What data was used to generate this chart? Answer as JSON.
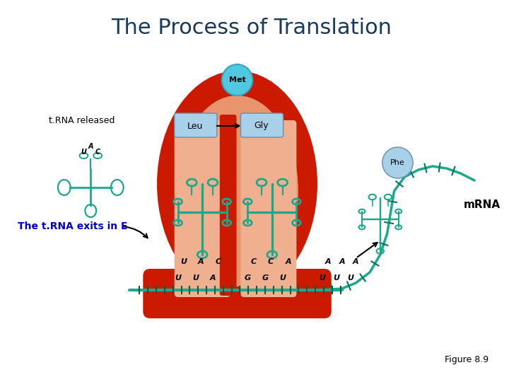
{
  "title": "The Process of Translation",
  "title_color": "#1a3a5c",
  "title_fontsize": 22,
  "bg_color": "#ffffff",
  "ribosome_outer_color": "#cc1a00",
  "ribosome_inner_color": "#e8956d",
  "ribosome_inner2_color": "#f0b090",
  "trna_color": "#1aaa8a",
  "mrna_color": "#1aaa8a",
  "leu_box_color": "#a8d0e8",
  "gly_box_color": "#a8d0e8",
  "met_circle_color": "#50c8e0",
  "phe_circle_color": "#a8d0e8",
  "subtitle_text": "The t.RNA exits in E",
  "subtitle_color": "#0000cc",
  "subtitle_fontsize": 10,
  "figure_text": "Figure 8.9",
  "figure_text_fontsize": 9,
  "figure_text_color": "#000000",
  "label_leu": "Leu",
  "label_gly": "Gly",
  "label_met": "Met",
  "label_phe": "Phe",
  "label_mrna": "mRNA",
  "label_trna_released": "t.RNA released",
  "codon_top1": [
    "U",
    "A",
    "C"
  ],
  "codon_bot1": [
    "U",
    "U",
    "A"
  ],
  "codon_top2": [
    "C",
    "C",
    "A"
  ],
  "codon_bot2": [
    "G",
    "G",
    "U"
  ],
  "codon_right_top": [
    "A",
    "A",
    "A"
  ],
  "codon_right_bot": [
    "U",
    "U",
    "U"
  ]
}
